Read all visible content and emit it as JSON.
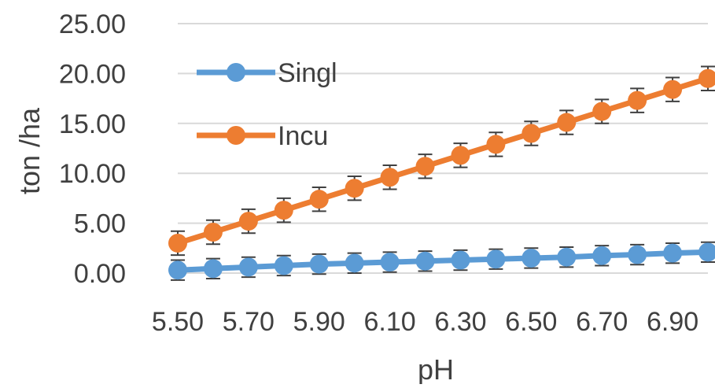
{
  "chart_data": {
    "type": "line",
    "title": "",
    "xlabel": "pH",
    "ylabel": "ton /ha",
    "xlim": [
      5.5,
      7.0
    ],
    "ylim": [
      0,
      25
    ],
    "grid": true,
    "legend_position": "top-left",
    "x_tick_labels": [
      "5.50",
      "5.70",
      "5.90",
      "6.10",
      "6.30",
      "6.50",
      "6.70",
      "6.90"
    ],
    "y_tick_labels": [
      "0.00",
      "5.00",
      "10.00",
      "15.00",
      "20.00",
      "25.00"
    ],
    "x": [
      5.5,
      5.6,
      5.7,
      5.8,
      5.9,
      6.0,
      6.1,
      6.2,
      6.3,
      6.4,
      6.5,
      6.6,
      6.7,
      6.8,
      6.9,
      7.0
    ],
    "series": [
      {
        "name": "Singl",
        "color": "#5b9bd5",
        "values": [
          0.3,
          0.45,
          0.6,
          0.75,
          0.9,
          1.0,
          1.1,
          1.2,
          1.3,
          1.4,
          1.5,
          1.6,
          1.75,
          1.85,
          2.0,
          2.1
        ],
        "error": 1.0
      },
      {
        "name": "Incu",
        "color": "#ed7d31",
        "values": [
          3.0,
          4.1,
          5.2,
          6.3,
          7.4,
          8.5,
          9.6,
          10.7,
          11.8,
          12.9,
          14.0,
          15.1,
          16.2,
          17.3,
          18.4,
          19.5
        ],
        "error": 1.2
      }
    ]
  }
}
